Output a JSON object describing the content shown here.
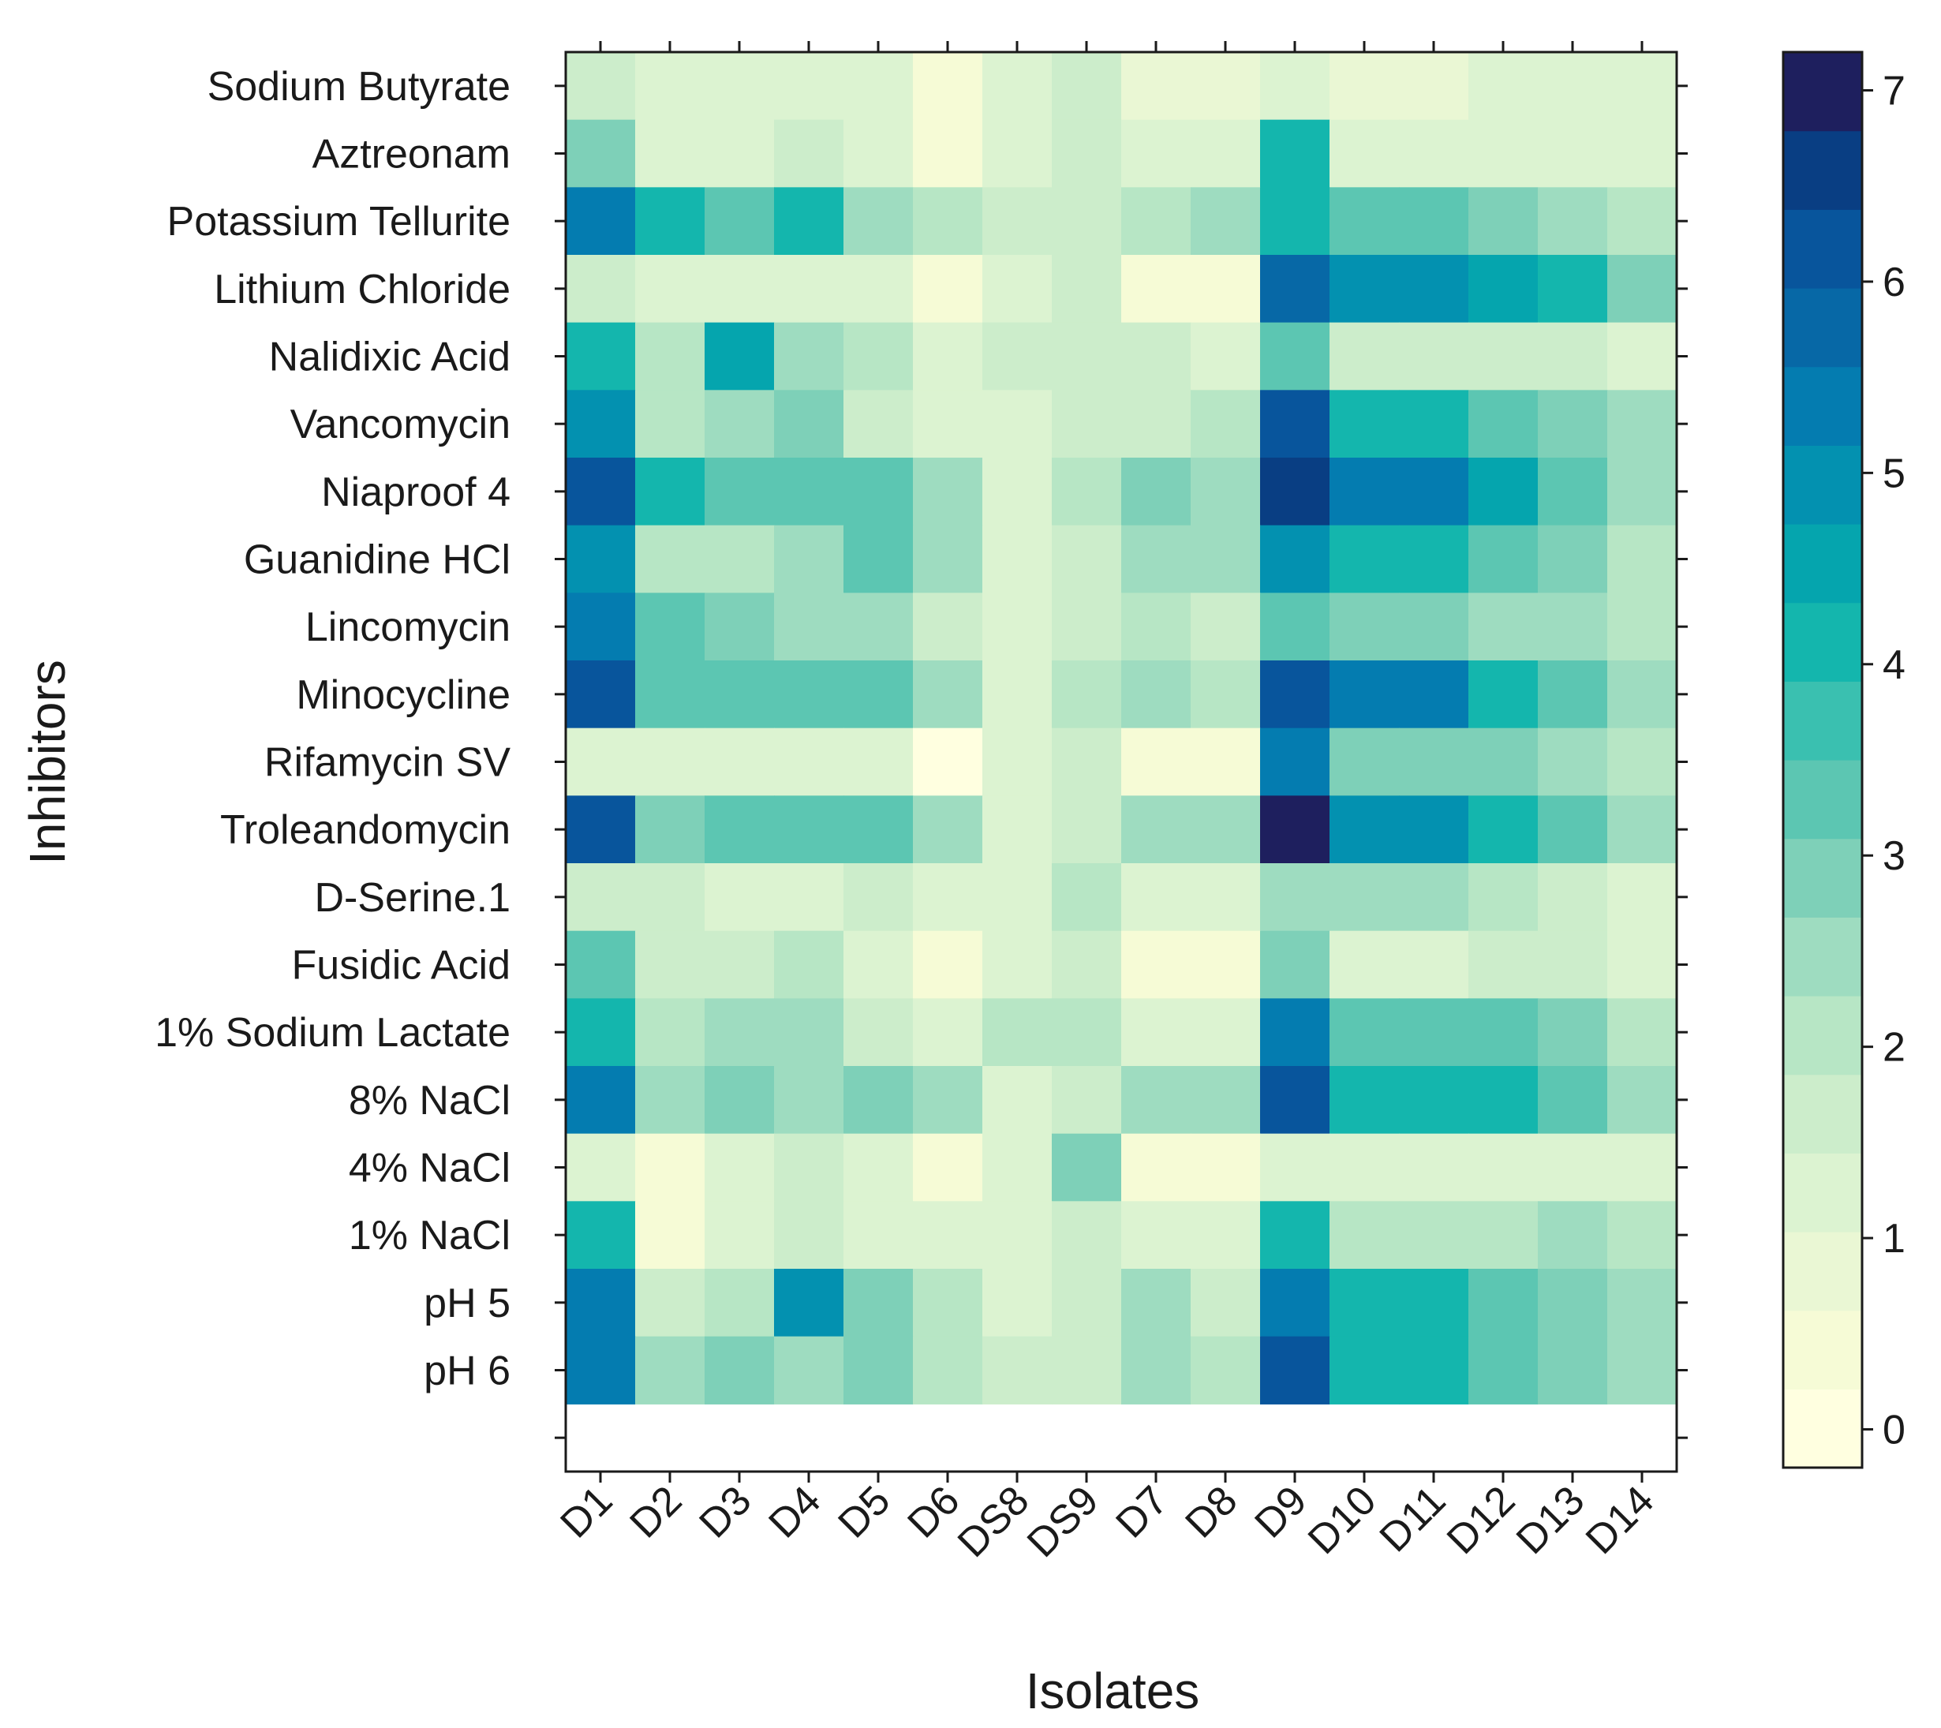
{
  "chart_data": {
    "type": "heatmap",
    "xlabel": "Isolates",
    "ylabel": "Inhibitors",
    "x_categories": [
      "D1",
      "D2",
      "D3",
      "D4",
      "D5",
      "D6",
      "DS8",
      "DS9",
      "D7",
      "D8",
      "D9",
      "D10",
      "D11",
      "D12",
      "D13",
      "D14"
    ],
    "y_categories": [
      "Sodium Butyrate",
      "Aztreonam",
      "Potassium Tellurite",
      "Lithium Chloride",
      "Nalidixic Acid",
      "Vancomycin",
      "Niaproof 4",
      "Guanidine HCl",
      "Lincomycin",
      "Minocycline",
      "Rifamycin SV",
      "Troleandomycin",
      "D-Serine.1",
      "Fusidic Acid",
      "1% Sodium Lactate",
      "8% NaCl",
      "4% NaCl",
      "1% NaCl",
      "pH 5",
      "pH 6"
    ],
    "values": [
      [
        1.7,
        1.1,
        1.1,
        1.1,
        1.1,
        0.6,
        1.1,
        1.6,
        0.9,
        0.9,
        1.3,
        0.9,
        0.9,
        1.1,
        1.1,
        1.1
      ],
      [
        2.9,
        1.1,
        1.1,
        1.6,
        1.1,
        0.6,
        1.1,
        1.6,
        1.1,
        1.1,
        4.1,
        1.1,
        1.1,
        1.1,
        1.1,
        1.1
      ],
      [
        5.3,
        4.1,
        3.3,
        4.3,
        2.4,
        2.1,
        1.6,
        1.6,
        2.1,
        2.4,
        4.3,
        3.3,
        3.3,
        2.9,
        2.4,
        2.1
      ],
      [
        1.6,
        1.1,
        1.1,
        1.1,
        1.1,
        0.6,
        1.1,
        1.6,
        0.6,
        0.6,
        5.8,
        4.8,
        4.8,
        4.6,
        4.1,
        2.9
      ],
      [
        4.3,
        2.1,
        4.6,
        2.4,
        2.1,
        1.1,
        1.6,
        1.6,
        1.6,
        1.1,
        3.3,
        1.6,
        1.6,
        1.6,
        1.6,
        1.1
      ],
      [
        4.8,
        2.1,
        2.6,
        2.9,
        1.6,
        1.1,
        1.1,
        1.6,
        1.6,
        2.1,
        6.1,
        4.1,
        4.1,
        3.3,
        2.9,
        2.4
      ],
      [
        6.1,
        4.1,
        3.3,
        3.3,
        3.3,
        2.4,
        1.1,
        2.1,
        2.9,
        2.4,
        6.6,
        5.3,
        5.3,
        4.6,
        3.3,
        2.4
      ],
      [
        4.8,
        2.1,
        2.1,
        2.4,
        3.3,
        2.4,
        1.1,
        1.6,
        2.4,
        2.4,
        4.8,
        4.1,
        4.1,
        3.3,
        2.9,
        2.1
      ],
      [
        5.3,
        3.3,
        2.9,
        2.4,
        2.4,
        1.6,
        1.1,
        1.6,
        2.1,
        1.6,
        3.3,
        2.9,
        2.9,
        2.4,
        2.4,
        2.1
      ],
      [
        6.1,
        3.3,
        3.3,
        3.3,
        3.3,
        2.4,
        1.1,
        2.1,
        2.4,
        2.1,
        6.1,
        5.3,
        5.3,
        4.1,
        3.3,
        2.4
      ],
      [
        1.1,
        1.1,
        1.1,
        1.1,
        1.1,
        0.2,
        1.1,
        1.6,
        0.6,
        0.6,
        5.3,
        2.9,
        2.9,
        2.9,
        2.4,
        2.1
      ],
      [
        6.1,
        2.9,
        3.3,
        3.3,
        3.3,
        2.4,
        1.1,
        1.6,
        2.4,
        2.4,
        7.0,
        4.8,
        4.8,
        4.1,
        3.3,
        2.4
      ],
      [
        1.6,
        1.6,
        1.1,
        1.1,
        1.6,
        1.1,
        1.1,
        2.1,
        1.1,
        1.1,
        2.4,
        2.4,
        2.4,
        2.1,
        1.6,
        1.1
      ],
      [
        3.3,
        1.6,
        1.6,
        2.1,
        1.1,
        0.6,
        1.1,
        1.6,
        0.6,
        0.6,
        2.9,
        1.1,
        1.1,
        1.6,
        1.6,
        1.1
      ],
      [
        4.3,
        2.1,
        2.4,
        2.4,
        1.6,
        1.1,
        2.1,
        2.1,
        1.1,
        1.1,
        5.3,
        3.3,
        3.3,
        3.3,
        2.9,
        2.1
      ],
      [
        5.3,
        2.4,
        2.9,
        2.4,
        2.9,
        2.4,
        1.1,
        1.6,
        2.4,
        2.4,
        6.1,
        4.3,
        4.3,
        4.1,
        3.3,
        2.4
      ],
      [
        1.1,
        0.6,
        1.1,
        1.6,
        1.1,
        0.6,
        1.1,
        2.9,
        0.6,
        0.6,
        1.1,
        1.1,
        1.1,
        1.1,
        1.1,
        1.1
      ],
      [
        4.1,
        0.6,
        1.1,
        1.6,
        1.1,
        1.1,
        1.1,
        1.6,
        1.1,
        1.1,
        4.1,
        2.1,
        2.1,
        2.1,
        2.4,
        2.1
      ],
      [
        5.3,
        1.6,
        2.1,
        4.8,
        2.9,
        2.1,
        1.1,
        1.6,
        2.4,
        1.6,
        5.3,
        4.1,
        4.1,
        3.3,
        2.9,
        2.4
      ],
      [
        5.3,
        2.4,
        2.9,
        2.4,
        2.9,
        2.1,
        1.6,
        1.6,
        2.4,
        2.1,
        6.3,
        4.1,
        4.1,
        3.3,
        2.9,
        2.4
      ]
    ],
    "color_scale": {
      "min": -0.2,
      "max": 7.2,
      "ticks": [
        "0",
        "1",
        "2",
        "3",
        "4",
        "5",
        "6",
        "7"
      ],
      "bins": [
        "#ffffe0",
        "#f6fbd6",
        "#eaf7d4",
        "#dcf3d1",
        "#ccedcb",
        "#b7e6c5",
        "#9edcc0",
        "#7ed0b8",
        "#5cc6b2",
        "#3ac0b0",
        "#14b6ad",
        "#05a5ae",
        "#0391b0",
        "#047cb0",
        "#0768a6",
        "#08559c",
        "#093e83",
        "#1e1f5e"
      ]
    },
    "missing_row_label": ""
  }
}
